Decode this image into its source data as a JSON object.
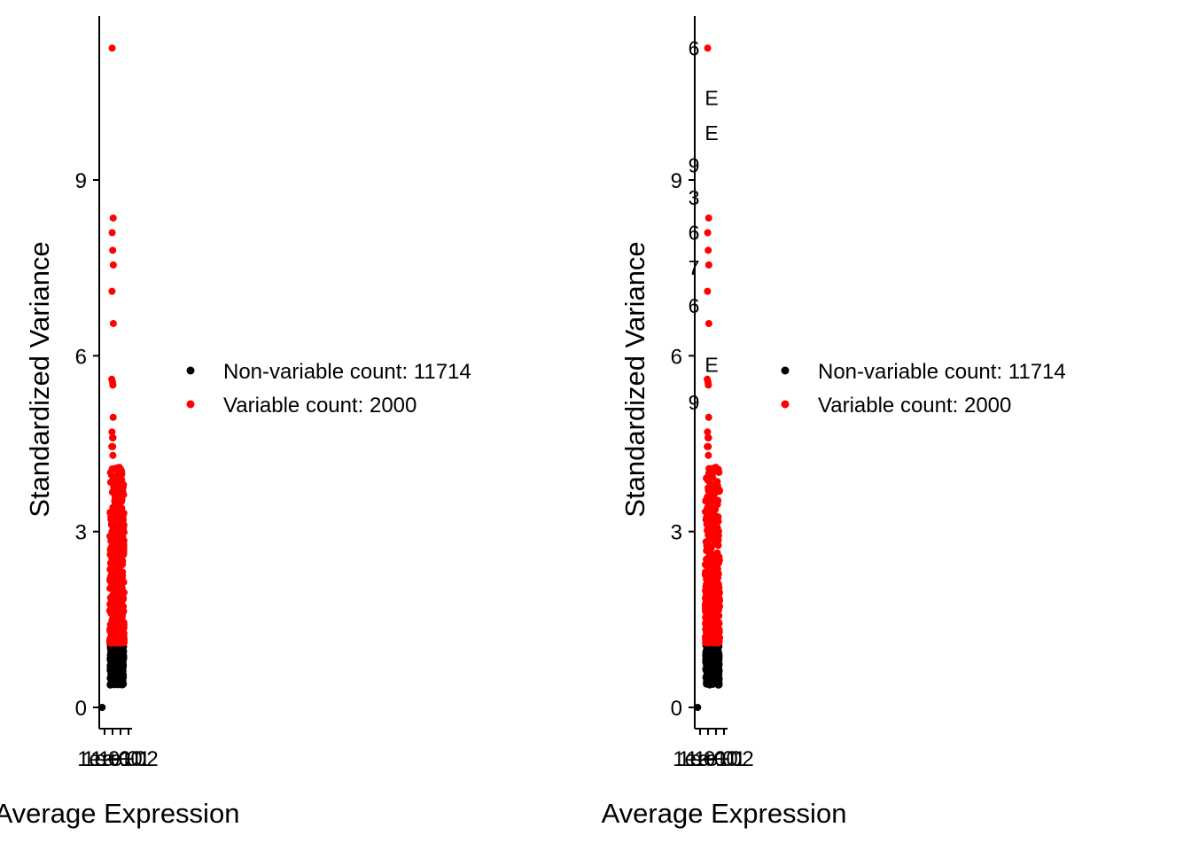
{
  "chart_data": [
    {
      "type": "scatter",
      "xlabel": "Average Expression",
      "ylabel": "Standardized Variance",
      "ylim": [
        -0.45,
        11.8
      ],
      "y_ticks": [
        "0",
        "3",
        "6",
        "9"
      ],
      "x_tick_labels": [
        "1e-01",
        "1e+00",
        "1e+01",
        "1e+02"
      ],
      "log_x": true,
      "grid": false,
      "legend_placement": "right",
      "legend": [
        {
          "label": "Non-variable count: 11714",
          "color": "#000000"
        },
        {
          "label": "Variable count: 2000",
          "color": "#ff0000"
        }
      ],
      "series": [
        {
          "legend_index": 1,
          "color": "#ff0000",
          "points": [
            [
              0.9,
              11.25
            ],
            [
              1.2,
              8.35
            ],
            [
              0.9,
              8.1
            ],
            [
              1.05,
              7.8
            ],
            [
              1.25,
              7.55
            ],
            [
              0.85,
              7.1
            ],
            [
              1.25,
              6.55
            ],
            [
              0.8,
              5.6
            ],
            [
              1.0,
              5.55
            ],
            [
              1.1,
              5.5
            ],
            [
              1.2,
              4.95
            ],
            [
              0.85,
              4.7
            ],
            [
              1.0,
              4.6
            ],
            [
              1.15,
              4.6
            ],
            [
              0.8,
              4.45
            ],
            [
              1.05,
              4.45
            ],
            [
              1.1,
              4.3
            ]
          ]
        },
        {
          "legend_index": 0,
          "color": "#000000",
          "points": [
            [
              0.05,
              0.0
            ]
          ]
        }
      ],
      "point_labels": []
    },
    {
      "type": "scatter",
      "xlabel": "Average Expression",
      "ylabel": "Standardized Variance",
      "ylim": [
        -0.45,
        11.8
      ],
      "y_ticks": [
        "0",
        "3",
        "6",
        "9"
      ],
      "x_tick_labels": [
        "1e-01",
        "1e+00",
        "1e+01",
        "1e+02"
      ],
      "log_x": true,
      "grid": false,
      "legend_placement": "right",
      "legend": [
        {
          "label": "Non-variable count: 11714",
          "color": "#000000"
        },
        {
          "label": "Variable count: 2000",
          "color": "#ff0000"
        }
      ],
      "series": [
        {
          "legend_index": 1,
          "color": "#ff0000",
          "points": [
            [
              0.9,
              11.25
            ],
            [
              1.2,
              8.35
            ],
            [
              0.9,
              8.1
            ],
            [
              1.05,
              7.8
            ],
            [
              1.25,
              7.55
            ],
            [
              0.85,
              7.1
            ],
            [
              1.25,
              6.55
            ],
            [
              0.8,
              5.6
            ],
            [
              1.0,
              5.55
            ],
            [
              1.1,
              5.5
            ],
            [
              1.2,
              4.95
            ],
            [
              0.85,
              4.7
            ],
            [
              1.0,
              4.6
            ],
            [
              1.15,
              4.6
            ],
            [
              0.8,
              4.45
            ],
            [
              1.05,
              4.45
            ],
            [
              1.1,
              4.3
            ]
          ]
        },
        {
          "legend_index": 0,
          "color": "#000000",
          "points": [
            [
              0.05,
              0.0
            ]
          ]
        }
      ],
      "point_labels": [
        {
          "text": "6",
          "y": 11.25,
          "dx": -10
        },
        {
          "text": "E",
          "y": 10.4,
          "dx": 10
        },
        {
          "text": "E",
          "y": 9.8,
          "dx": 10
        },
        {
          "text": "9",
          "y": 9.25,
          "dx": -10
        },
        {
          "text": "3",
          "y": 8.7,
          "dx": -10
        },
        {
          "text": "6",
          "y": 8.1,
          "dx": -10
        },
        {
          "text": "7",
          "y": 7.5,
          "dx": -10
        },
        {
          "text": "6",
          "y": 6.85,
          "dx": -10
        },
        {
          "text": "E",
          "y": 5.85,
          "dx": 10
        },
        {
          "text": "9",
          "y": 5.2,
          "dx": -10
        }
      ]
    }
  ]
}
